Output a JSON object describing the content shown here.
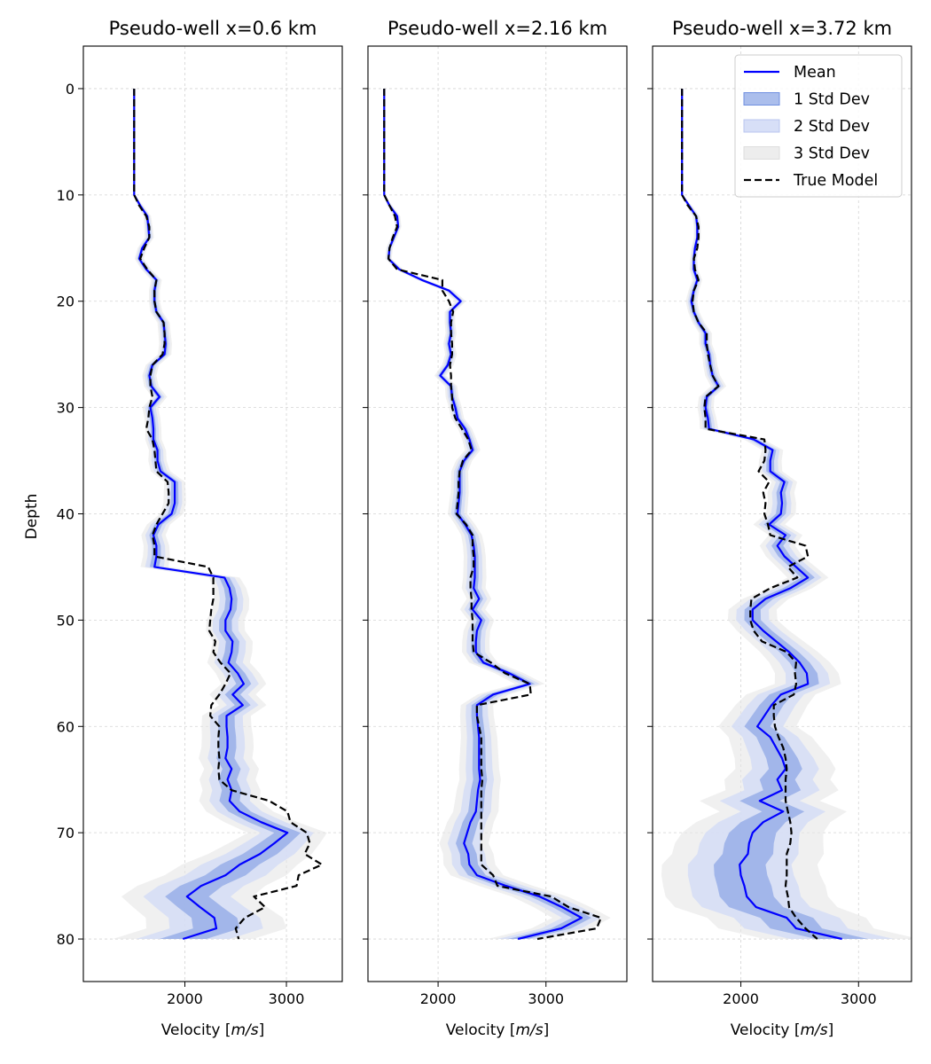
{
  "chart_data": [
    {
      "type": "line",
      "title": "Pseudo-well x=0.6 km",
      "xlabel": "Velocity [m/s]",
      "ylabel": "Depth",
      "xlim": [
        1000,
        3550
      ],
      "ylim": [
        84,
        -4
      ],
      "xticks": [
        "2000",
        "3000"
      ],
      "yticks": [
        "0",
        "10",
        "20",
        "30",
        "40",
        "50",
        "60",
        "70",
        "80"
      ],
      "grid": true,
      "depth": [
        0,
        1,
        2,
        3,
        4,
        5,
        6,
        7,
        8,
        9,
        10,
        11,
        12,
        13,
        14,
        15,
        16,
        17,
        18,
        19,
        20,
        21,
        22,
        23,
        24,
        25,
        26,
        27,
        28,
        29,
        30,
        31,
        32,
        33,
        34,
        35,
        36,
        37,
        38,
        39,
        40,
        41,
        42,
        43,
        44,
        45,
        46,
        47,
        48,
        49,
        50,
        51,
        52,
        53,
        54,
        55,
        56,
        57,
        58,
        59,
        60,
        61,
        62,
        63,
        64,
        65,
        66,
        67,
        68,
        69,
        70,
        71,
        72,
        73,
        74,
        75,
        76,
        77,
        78,
        79,
        80
      ],
      "series": [
        {
          "name": "Mean",
          "values": [
            1500,
            1500,
            1500,
            1500,
            1500,
            1500,
            1500,
            1500,
            1500,
            1500,
            1500,
            1560,
            1630,
            1640,
            1650,
            1580,
            1550,
            1620,
            1720,
            1700,
            1700,
            1720,
            1790,
            1800,
            1810,
            1800,
            1680,
            1650,
            1670,
            1750,
            1660,
            1680,
            1690,
            1690,
            1730,
            1730,
            1760,
            1900,
            1900,
            1900,
            1870,
            1740,
            1690,
            1720,
            1720,
            1700,
            2390,
            2440,
            2460,
            2450,
            2400,
            2400,
            2470,
            2460,
            2430,
            2520,
            2580,
            2470,
            2570,
            2410,
            2410,
            2420,
            2420,
            2400,
            2460,
            2420,
            2460,
            2440,
            2540,
            2750,
            3010,
            2880,
            2740,
            2540,
            2400,
            2160,
            2020,
            2150,
            2290,
            2310,
            1980
          ]
        },
        {
          "name": "1 Std Dev",
          "sd": [
            0,
            0,
            0,
            0,
            0,
            0,
            0,
            0,
            0,
            0,
            0,
            10,
            12,
            14,
            15,
            15,
            15,
            16,
            18,
            18,
            18,
            20,
            20,
            20,
            21,
            22,
            22,
            23,
            24,
            25,
            26,
            26,
            26,
            27,
            28,
            30,
            32,
            34,
            36,
            37,
            38,
            38,
            40,
            42,
            44,
            46,
            50,
            55,
            58,
            60,
            62,
            64,
            66,
            68,
            70,
            72,
            74,
            76,
            78,
            80,
            82,
            84,
            86,
            88,
            90,
            92,
            95,
            100,
            110,
            120,
            130,
            150,
            170,
            190,
            200,
            210,
            215,
            220,
            225,
            230,
            230
          ]
        },
        {
          "name": "True Model",
          "values": [
            1500,
            1500,
            1500,
            1500,
            1500,
            1500,
            1500,
            1500,
            1500,
            1500,
            1500,
            1550,
            1620,
            1650,
            1650,
            1600,
            1560,
            1630,
            1720,
            1700,
            1700,
            1720,
            1790,
            1800,
            1800,
            1780,
            1680,
            1660,
            1660,
            1680,
            1650,
            1640,
            1620,
            1680,
            1700,
            1710,
            1720,
            1830,
            1840,
            1840,
            1780,
            1720,
            1680,
            1700,
            1700,
            2230,
            2280,
            2280,
            2280,
            2260,
            2250,
            2240,
            2300,
            2280,
            2350,
            2450,
            2400,
            2340,
            2260,
            2250,
            2340,
            2330,
            2330,
            2340,
            2330,
            2340,
            2460,
            2830,
            3010,
            3040,
            3200,
            3230,
            3180,
            3350,
            3120,
            3100,
            2680,
            2790,
            2590,
            2500,
            2530
          ]
        },
        {
          "name": "2 Std Dev"
        },
        {
          "name": "3 Std Dev"
        }
      ]
    },
    {
      "type": "line",
      "title": "Pseudo-well x=2.16 km",
      "xlabel": "Velocity [m/s]",
      "xlim": [
        1350,
        3750
      ],
      "ylim": [
        84,
        -4
      ],
      "xticks": [
        "2000",
        "3000"
      ],
      "grid": true,
      "depth": [
        0,
        1,
        2,
        3,
        4,
        5,
        6,
        7,
        8,
        9,
        10,
        11,
        12,
        13,
        14,
        15,
        16,
        17,
        18,
        19,
        20,
        21,
        22,
        23,
        24,
        25,
        26,
        27,
        28,
        29,
        30,
        31,
        32,
        33,
        34,
        35,
        36,
        37,
        38,
        39,
        40,
        41,
        42,
        43,
        44,
        45,
        46,
        47,
        48,
        49,
        50,
        51,
        52,
        53,
        54,
        55,
        56,
        57,
        58,
        59,
        60,
        61,
        62,
        63,
        64,
        65,
        66,
        67,
        68,
        69,
        70,
        71,
        72,
        73,
        74,
        75,
        76,
        77,
        78,
        79,
        80
      ],
      "series": [
        {
          "name": "Mean",
          "values": [
            1500,
            1500,
            1500,
            1500,
            1500,
            1500,
            1500,
            1500,
            1500,
            1500,
            1500,
            1550,
            1620,
            1630,
            1590,
            1550,
            1540,
            1640,
            1850,
            2100,
            2210,
            2110,
            2110,
            2120,
            2100,
            2120,
            2090,
            2020,
            2120,
            2130,
            2160,
            2180,
            2250,
            2290,
            2320,
            2240,
            2200,
            2200,
            2200,
            2190,
            2180,
            2250,
            2310,
            2330,
            2340,
            2340,
            2340,
            2330,
            2380,
            2320,
            2400,
            2360,
            2350,
            2350,
            2420,
            2660,
            2850,
            2510,
            2360,
            2360,
            2370,
            2380,
            2380,
            2380,
            2380,
            2390,
            2370,
            2360,
            2350,
            2300,
            2270,
            2240,
            2280,
            2290,
            2360,
            2630,
            2940,
            3150,
            3330,
            3140,
            2740
          ]
        },
        {
          "name": "1 Std Dev",
          "sd": [
            0,
            0,
            0,
            0,
            0,
            0,
            0,
            0,
            0,
            0,
            0,
            8,
            10,
            10,
            10,
            10,
            10,
            12,
            15,
            16,
            16,
            16,
            16,
            17,
            17,
            18,
            18,
            18,
            19,
            20,
            20,
            20,
            22,
            22,
            24,
            25,
            26,
            27,
            28,
            29,
            30,
            31,
            32,
            33,
            34,
            35,
            36,
            37,
            38,
            39,
            40,
            41,
            42,
            43,
            44,
            45,
            46,
            48,
            50,
            52,
            54,
            56,
            58,
            60,
            62,
            64,
            66,
            68,
            70,
            72,
            74,
            76,
            78,
            80,
            82,
            84,
            86,
            88,
            90,
            92,
            94
          ]
        },
        {
          "name": "True Model",
          "values": [
            1500,
            1500,
            1500,
            1500,
            1500,
            1500,
            1500,
            1500,
            1500,
            1500,
            1500,
            1550,
            1600,
            1620,
            1580,
            1550,
            1540,
            1620,
            2040,
            2040,
            2100,
            2140,
            2120,
            2120,
            2130,
            2130,
            2110,
            2120,
            2120,
            2130,
            2130,
            2160,
            2220,
            2280,
            2310,
            2230,
            2200,
            2190,
            2190,
            2180,
            2170,
            2260,
            2320,
            2320,
            2330,
            2330,
            2300,
            2300,
            2310,
            2310,
            2320,
            2320,
            2320,
            2330,
            2490,
            2620,
            2850,
            2860,
            2360,
            2360,
            2380,
            2400,
            2400,
            2400,
            2400,
            2410,
            2400,
            2400,
            2400,
            2400,
            2400,
            2400,
            2400,
            2400,
            2510,
            2550,
            3050,
            3210,
            3510,
            3470,
            2920
          ]
        },
        {
          "name": "2 Std Dev"
        },
        {
          "name": "3 Std Dev"
        }
      ]
    },
    {
      "type": "line",
      "title": "Pseudo-well x=3.72 km",
      "xlabel": "Velocity [m/s]",
      "xlim": [
        1250,
        3450
      ],
      "ylim": [
        84,
        -4
      ],
      "xticks": [
        "2000",
        "3000"
      ],
      "grid": true,
      "legend": "top-right",
      "depth": [
        0,
        1,
        2,
        3,
        4,
        5,
        6,
        7,
        8,
        9,
        10,
        11,
        12,
        13,
        14,
        15,
        16,
        17,
        18,
        19,
        20,
        21,
        22,
        23,
        24,
        25,
        26,
        27,
        28,
        29,
        30,
        31,
        32,
        33,
        34,
        35,
        36,
        37,
        38,
        39,
        40,
        41,
        42,
        43,
        44,
        45,
        46,
        47,
        48,
        49,
        50,
        51,
        52,
        53,
        54,
        55,
        56,
        57,
        58,
        59,
        60,
        61,
        62,
        63,
        64,
        65,
        66,
        67,
        68,
        69,
        70,
        71,
        72,
        73,
        74,
        75,
        76,
        77,
        78,
        79,
        80
      ],
      "series": [
        {
          "name": "Mean",
          "values": [
            1500,
            1500,
            1500,
            1500,
            1500,
            1500,
            1500,
            1500,
            1500,
            1500,
            1500,
            1560,
            1620,
            1630,
            1630,
            1610,
            1600,
            1600,
            1630,
            1600,
            1580,
            1600,
            1640,
            1700,
            1700,
            1730,
            1740,
            1760,
            1810,
            1710,
            1700,
            1720,
            1730,
            2110,
            2270,
            2250,
            2250,
            2370,
            2340,
            2350,
            2340,
            2240,
            2380,
            2310,
            2370,
            2470,
            2570,
            2420,
            2210,
            2100,
            2100,
            2190,
            2300,
            2410,
            2500,
            2560,
            2570,
            2340,
            2260,
            2200,
            2140,
            2250,
            2300,
            2350,
            2380,
            2310,
            2350,
            2160,
            2360,
            2190,
            2100,
            2070,
            2060,
            1990,
            2000,
            2030,
            2050,
            2130,
            2390,
            2470,
            2860
          ]
        },
        {
          "name": "1 Std Dev",
          "sd": [
            0,
            0,
            0,
            0,
            0,
            0,
            0,
            0,
            0,
            0,
            0,
            8,
            10,
            10,
            10,
            10,
            10,
            12,
            14,
            15,
            16,
            16,
            17,
            18,
            18,
            19,
            20,
            21,
            22,
            22,
            23,
            24,
            26,
            28,
            30,
            32,
            34,
            36,
            38,
            40,
            42,
            45,
            48,
            50,
            52,
            55,
            58,
            62,
            65,
            68,
            70,
            74,
            78,
            82,
            86,
            90,
            94,
            98,
            102,
            106,
            110,
            118,
            126,
            134,
            142,
            150,
            160,
            170,
            180,
            190,
            200,
            210,
            215,
            220,
            225,
            230,
            230,
            230,
            225,
            220,
            220
          ]
        },
        {
          "name": "True Model",
          "values": [
            1500,
            1500,
            1500,
            1500,
            1500,
            1500,
            1500,
            1500,
            1500,
            1500,
            1500,
            1550,
            1620,
            1640,
            1640,
            1630,
            1600,
            1610,
            1640,
            1600,
            1590,
            1600,
            1640,
            1710,
            1710,
            1720,
            1740,
            1760,
            1810,
            1700,
            1690,
            1700,
            1700,
            2200,
            2210,
            2200,
            2150,
            2240,
            2190,
            2210,
            2200,
            2230,
            2250,
            2550,
            2570,
            2400,
            2480,
            2250,
            2090,
            2080,
            2080,
            2110,
            2180,
            2390,
            2470,
            2460,
            2470,
            2450,
            2280,
            2280,
            2290,
            2320,
            2360,
            2380,
            2390,
            2380,
            2380,
            2380,
            2400,
            2420,
            2430,
            2420,
            2390,
            2390,
            2390,
            2380,
            2400,
            2410,
            2470,
            2550,
            2650
          ]
        },
        {
          "name": "2 Std Dev"
        },
        {
          "name": "3 Std Dev"
        }
      ]
    }
  ],
  "colors": {
    "mean": "#0000ff",
    "band1": "#8fa8e6",
    "band2": "#d3dcf6",
    "band3": "#e6e6e6",
    "true": "#000000",
    "grid": "#d3d3d3"
  },
  "legend_labels": {
    "mean": "Mean",
    "sd1": "1 Std Dev",
    "sd2": "2 Std Dev",
    "sd3": "3 Std Dev",
    "true": "True Model"
  }
}
